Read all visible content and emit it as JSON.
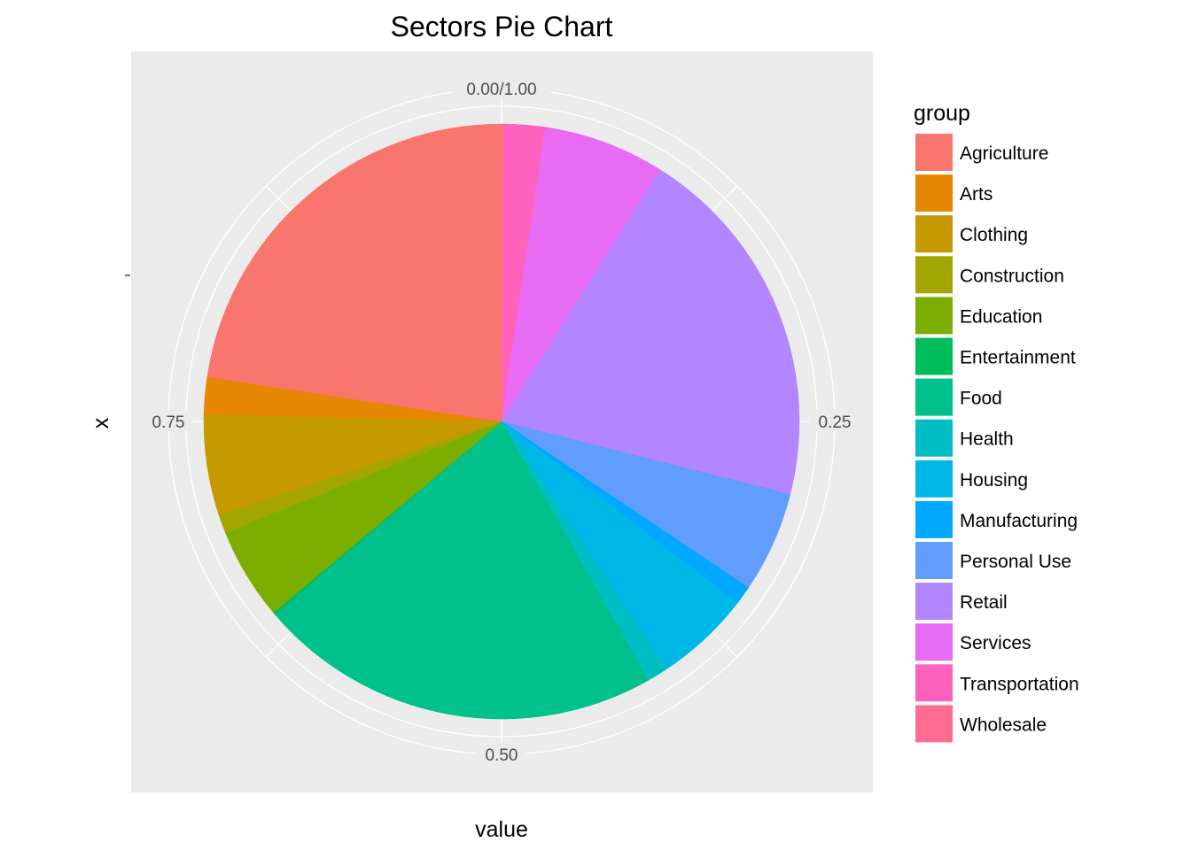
{
  "chart_data": {
    "type": "pie",
    "title": "Sectors Pie Chart",
    "xlabel": "value",
    "ylabel": "x",
    "theta_ticks": [
      {
        "label": "0.00/1.00",
        "value": 0.0
      },
      {
        "label": "0.25",
        "value": 0.25
      },
      {
        "label": "0.50",
        "value": 0.5
      },
      {
        "label": "0.75",
        "value": 0.75
      }
    ],
    "legend": {
      "title": "group",
      "position": "right"
    },
    "series": [
      {
        "name": "Wholesale",
        "value": 0.0015,
        "color": "#FF6C91"
      },
      {
        "name": "Transportation",
        "value": 0.022,
        "color": "#FF62BC"
      },
      {
        "name": "Services",
        "value": 0.066,
        "color": "#E76BF3"
      },
      {
        "name": "Retail",
        "value": 0.2,
        "color": "#B385FF"
      },
      {
        "name": "Personal Use",
        "value": 0.055,
        "color": "#619CFF"
      },
      {
        "name": "Manufacturing",
        "value": 0.01,
        "color": "#00A9FF"
      },
      {
        "name": "Housing",
        "value": 0.052,
        "color": "#00B8E7"
      },
      {
        "name": "Health",
        "value": 0.0115,
        "color": "#00BFC4"
      },
      {
        "name": "Food",
        "value": 0.22,
        "color": "#00C08B"
      },
      {
        "name": "Entertainment",
        "value": 0.001,
        "color": "#00BD5C"
      },
      {
        "name": "Education",
        "value": 0.05,
        "color": "#7CAE00"
      },
      {
        "name": "Construction",
        "value": 0.01,
        "color": "#A3A500"
      },
      {
        "name": "Clothing",
        "value": 0.055,
        "color": "#C49A00"
      },
      {
        "name": "Arts",
        "value": 0.02,
        "color": "#E58700"
      },
      {
        "name": "Agriculture",
        "value": 0.226,
        "color": "#F8766D"
      }
    ],
    "legend_order": [
      "Agriculture",
      "Arts",
      "Clothing",
      "Construction",
      "Education",
      "Entertainment",
      "Food",
      "Health",
      "Housing",
      "Manufacturing",
      "Personal Use",
      "Retail",
      "Services",
      "Transportation",
      "Wholesale"
    ],
    "grid": true
  }
}
